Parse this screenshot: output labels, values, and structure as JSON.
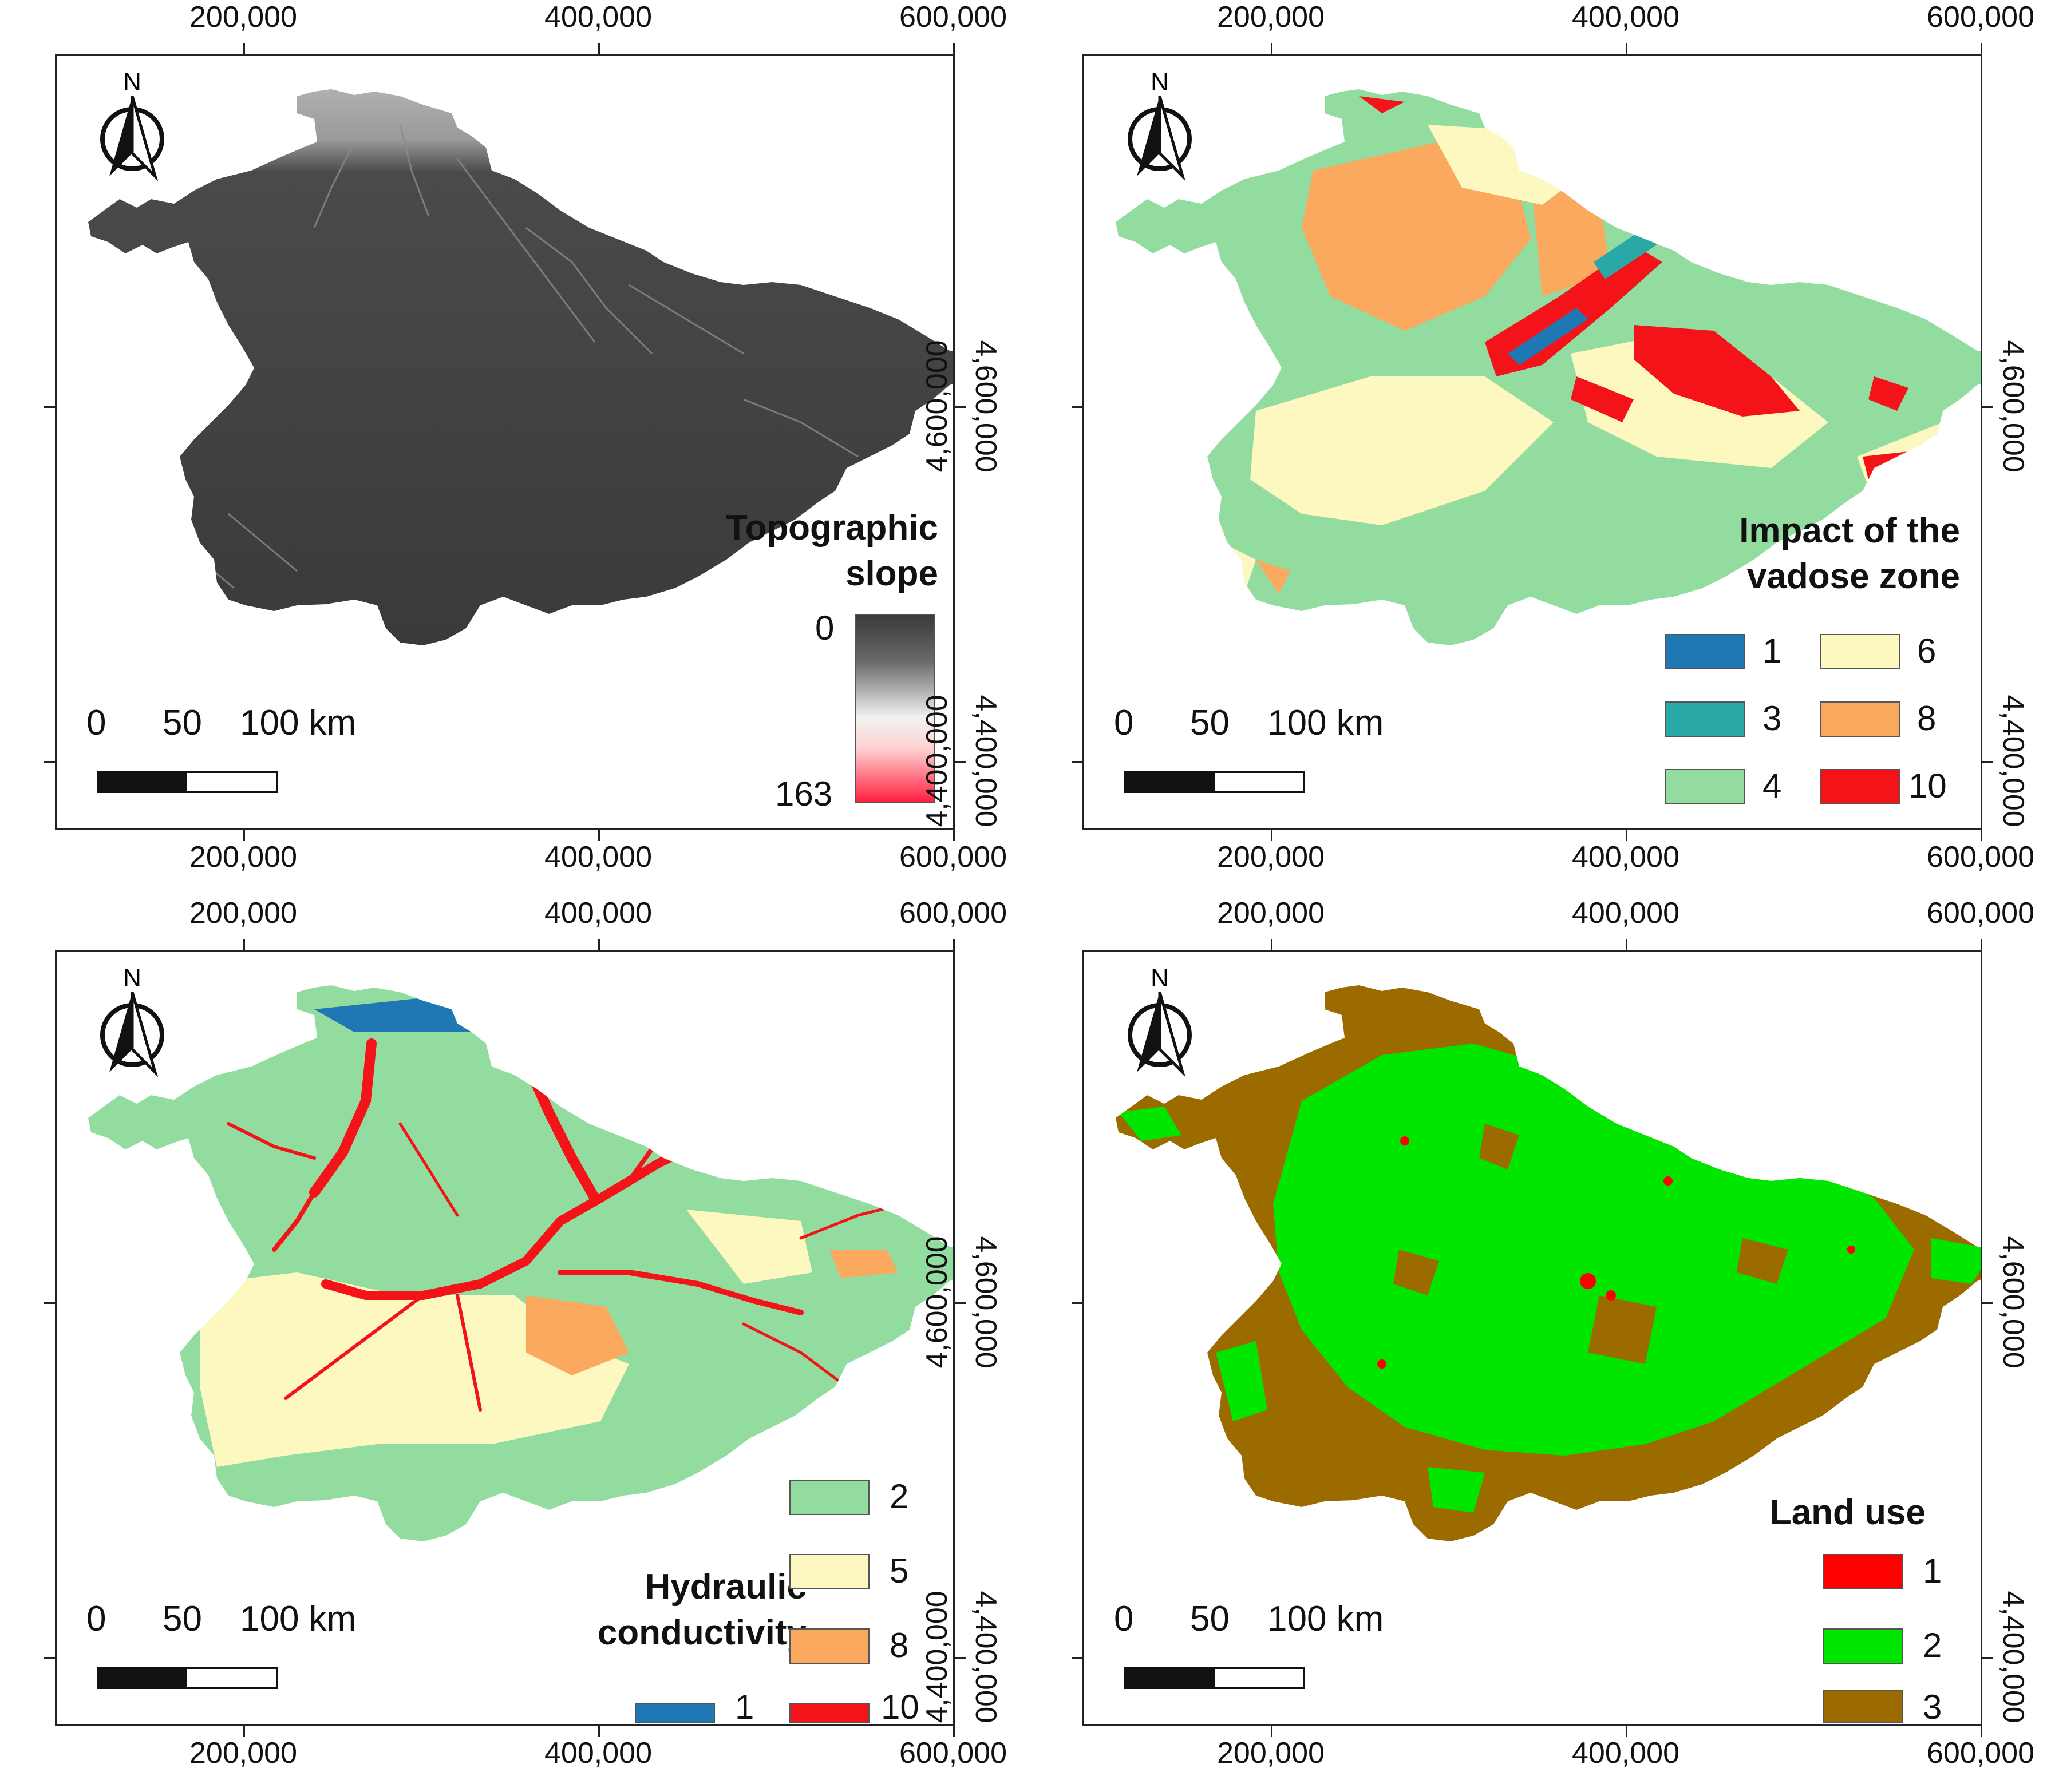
{
  "axes": {
    "x_ticks": [
      "200,000",
      "400,000",
      "600,000"
    ],
    "y_ticks": [
      "4,600,000",
      "4,400,000"
    ]
  },
  "north_label": "N",
  "scale": {
    "labels": [
      "0",
      "50",
      "100 km"
    ]
  },
  "colors": {
    "slope_dark": "#3b3b3b",
    "vz_1": "#1f77b4",
    "vz_3": "#2aa8a8",
    "vz_4": "#93dca0",
    "vz_6": "#fdf8bf",
    "vz_8": "#fba95e",
    "vz_10": "#f5131a",
    "hc_1": "#1f77b4",
    "hc_2": "#93dca0",
    "hc_5": "#fdf8bf",
    "hc_8": "#fba95e",
    "hc_10": "#f5131a",
    "lu_1": "#ff0000",
    "lu_2": "#00e600",
    "lu_3": "#9c6b00"
  },
  "panels": {
    "slope": {
      "title_line1": "Topographic",
      "title_line2": "slope",
      "ramp_min": "0",
      "ramp_max": "163"
    },
    "vadose": {
      "title_line1": "Impact of the",
      "title_line2": "vadose zone",
      "classes": [
        "1",
        "3",
        "4",
        "6",
        "8",
        "10"
      ]
    },
    "hydraulic": {
      "title_line1": "Hydraulic",
      "title_line2": "conductivity",
      "classes": [
        "2",
        "5",
        "8",
        "1",
        "10"
      ]
    },
    "landuse": {
      "title": "Land use",
      "classes": [
        "1",
        "2",
        "3"
      ]
    }
  }
}
